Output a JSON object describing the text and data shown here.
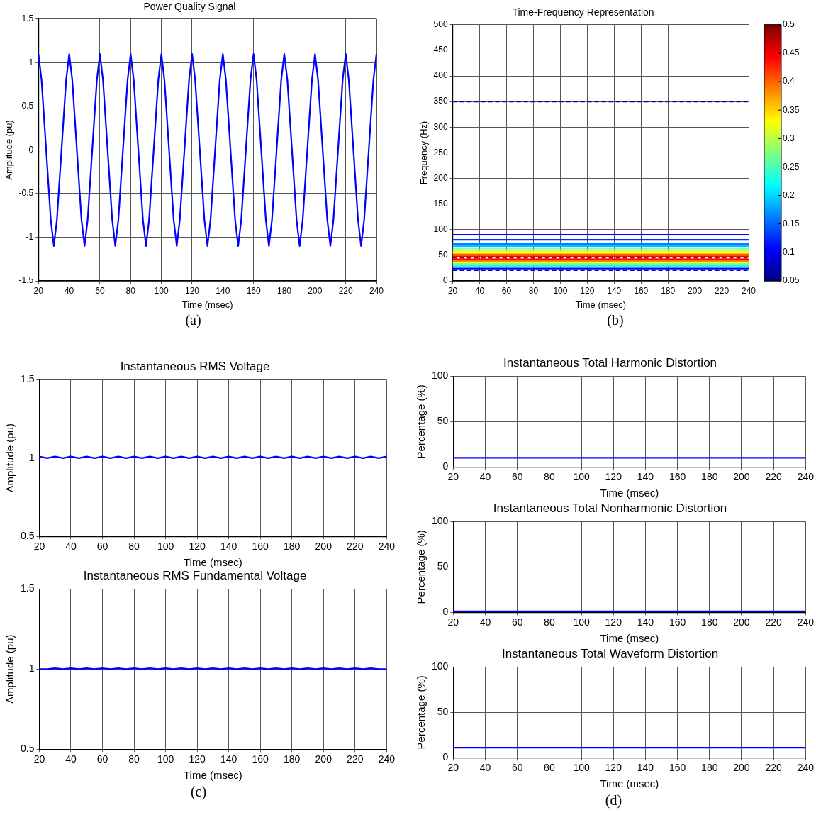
{
  "chart_data": [
    {
      "type": "line",
      "title": "Power Quality Signal",
      "xlabel": "Time (msec)",
      "ylabel": "Amplitude (pu)",
      "annotations": [
        "(a)"
      ],
      "xlim": [
        20,
        240
      ],
      "xticks": [
        20,
        40,
        60,
        80,
        100,
        120,
        140,
        160,
        180,
        200,
        220,
        240
      ],
      "ylim": [
        -1.5,
        1.5
      ],
      "yticks": [
        -1.5,
        -1,
        -0.5,
        0,
        0.5,
        1,
        1.5
      ],
      "grid": true,
      "legend": false,
      "marker": "none",
      "x": [
        20,
        22,
        25,
        28,
        30,
        32,
        35,
        38,
        40,
        42,
        45,
        48,
        50,
        52,
        55,
        58,
        60,
        62,
        65,
        68,
        70,
        72,
        75,
        78,
        80,
        82,
        85,
        88,
        90,
        92,
        95,
        98,
        100,
        102,
        105,
        108,
        110,
        112,
        115,
        118,
        120,
        122,
        125,
        128,
        130,
        132,
        135,
        138,
        140,
        142,
        145,
        148,
        150,
        152,
        155,
        158,
        160,
        162,
        165,
        168,
        170,
        172,
        175,
        178,
        180,
        182,
        185,
        188,
        190,
        192,
        195,
        198,
        200,
        202,
        205,
        208,
        210,
        212,
        215,
        218,
        220,
        222,
        225,
        228,
        230,
        232,
        235,
        238,
        240
      ],
      "series": [
        {
          "color": "#0000ff",
          "line_style": "solid",
          "values": [
            1.1,
            0.8,
            0,
            -0.8,
            -1.1,
            -0.8,
            0,
            0.8,
            1.1,
            0.8,
            0,
            -0.8,
            -1.1,
            -0.8,
            0,
            0.8,
            1.1,
            0.8,
            0,
            -0.8,
            -1.1,
            -0.8,
            0,
            0.8,
            1.1,
            0.8,
            0,
            -0.8,
            -1.1,
            -0.8,
            0,
            0.8,
            1.1,
            0.8,
            0,
            -0.8,
            -1.1,
            -0.8,
            0,
            0.8,
            1.1,
            0.8,
            0,
            -0.8,
            -1.1,
            -0.8,
            0,
            0.8,
            1.1,
            0.8,
            0,
            -0.8,
            -1.1,
            -0.8,
            0,
            0.8,
            1.1,
            0.8,
            0,
            -0.8,
            -1.1,
            -0.8,
            0,
            0.8,
            1.1,
            0.8,
            0,
            -0.8,
            -1.1,
            -0.8,
            0,
            0.8,
            1.1,
            0.8,
            0,
            -0.8,
            -1.1,
            -0.8,
            0,
            0.8,
            1.1,
            0.8,
            0,
            -0.8,
            -1.1,
            -0.8,
            0,
            0.8,
            1.1
          ]
        }
      ]
    },
    {
      "type": "line",
      "title": "Time-Frequency Representation",
      "xlabel": "Time (msec)",
      "ylabel": "Frequency (Hz)",
      "xlim": [
        20,
        240
      ],
      "xticks": [
        20,
        40,
        60,
        80,
        100,
        120,
        140,
        160,
        180,
        200,
        220,
        240
      ],
      "ylim": [
        0,
        500
      ],
      "yticks": [
        0,
        50,
        100,
        150,
        200,
        250,
        300,
        350,
        400,
        450,
        500
      ],
      "clim": [
        0.05,
        0.5
      ],
      "cticks": [
        0.05,
        0.1,
        0.15,
        0.2,
        0.25,
        0.3,
        0.35,
        0.4,
        0.45,
        0.5
      ],
      "grid": true,
      "legend": false,
      "marker": "none",
      "annotations": [
        "(b)"
      ],
      "x": [
        20,
        240
      ],
      "series": [
        {
          "color": "#00008f",
          "line_style": "dashed",
          "values": [
            350,
            350
          ]
        },
        {
          "color": "#0000ff",
          "line_style": "solid",
          "values": [
            90,
            90
          ]
        },
        {
          "color": "#0030ff",
          "line_style": "solid",
          "values": [
            80,
            80
          ]
        },
        {
          "color": "#0080ff",
          "line_style": "solid",
          "values": [
            72,
            72
          ]
        },
        {
          "color": "#00c0ff",
          "line_style": "solid",
          "values": [
            68,
            68
          ]
        },
        {
          "color": "#40ffbf",
          "line_style": "solid",
          "values": [
            64,
            64
          ]
        },
        {
          "color": "#80ff80",
          "line_style": "solid",
          "values": [
            60,
            60
          ]
        },
        {
          "color": "#ffff00",
          "line_style": "solid",
          "values": [
            57,
            57
          ]
        },
        {
          "color": "#ffbf00",
          "line_style": "solid",
          "values": [
            54,
            54
          ]
        },
        {
          "color": "#ff6000",
          "line_style": "solid",
          "values": [
            51,
            51
          ]
        },
        {
          "color": "#ff0000",
          "line_style": "solid",
          "values": [
            48,
            48
          ]
        },
        {
          "color": "#a00000",
          "line_style": "dashed",
          "values": [
            45,
            45
          ]
        },
        {
          "color": "#ff0000",
          "line_style": "solid",
          "values": [
            42,
            42
          ]
        },
        {
          "color": "#ff8000",
          "line_style": "solid",
          "values": [
            39,
            39
          ]
        },
        {
          "color": "#ffff00",
          "line_style": "solid",
          "values": [
            36,
            36
          ]
        },
        {
          "color": "#80ff80",
          "line_style": "solid",
          "values": [
            33,
            33
          ]
        },
        {
          "color": "#00ffff",
          "line_style": "solid",
          "values": [
            30,
            30
          ]
        },
        {
          "color": "#00a0ff",
          "line_style": "solid",
          "values": [
            27,
            27
          ]
        },
        {
          "color": "#0000ff",
          "line_style": "solid",
          "values": [
            24,
            24
          ]
        },
        {
          "color": "#00008f",
          "line_style": "dashed",
          "values": [
            21,
            21
          ]
        }
      ]
    },
    {
      "type": "line",
      "title": "Instantaneous RMS Voltage",
      "xlabel": "Time (msec)",
      "ylabel": "Amplitude (pu)",
      "xlim": [
        20,
        240
      ],
      "xticks": [
        20,
        40,
        60,
        80,
        100,
        120,
        140,
        160,
        180,
        200,
        220,
        240
      ],
      "ylim": [
        0.5,
        1.5
      ],
      "yticks": [
        0.5,
        1,
        1.5
      ],
      "grid": true,
      "legend": false,
      "marker": "none",
      "x": [
        20,
        25,
        30,
        35,
        40,
        45,
        50,
        55,
        60,
        65,
        70,
        75,
        80,
        85,
        90,
        95,
        100,
        105,
        110,
        115,
        120,
        125,
        130,
        135,
        140,
        145,
        150,
        155,
        160,
        165,
        170,
        175,
        180,
        185,
        190,
        195,
        200,
        205,
        210,
        215,
        220,
        225,
        230,
        235,
        240
      ],
      "series": [
        {
          "color": "#0000ff",
          "line_style": "solid",
          "values": [
            1.01,
            1,
            1.01,
            1,
            1.01,
            1,
            1.01,
            1,
            1.01,
            1,
            1.01,
            1,
            1.01,
            1,
            1.01,
            1,
            1.01,
            1,
            1.01,
            1,
            1.01,
            1,
            1.01,
            1,
            1.01,
            1,
            1.01,
            1,
            1.01,
            1,
            1.01,
            1,
            1.01,
            1,
            1.01,
            1,
            1.01,
            1,
            1.01,
            1,
            1.01,
            1,
            1.01,
            1,
            1.01
          ]
        }
      ]
    },
    {
      "type": "line",
      "title": "Instantaneous RMS Fundamental Voltage",
      "xlabel": "Time (msec)",
      "ylabel": "Amplitude (pu)",
      "xlim": [
        20,
        240
      ],
      "xticks": [
        20,
        40,
        60,
        80,
        100,
        120,
        140,
        160,
        180,
        200,
        220,
        240
      ],
      "ylim": [
        0.5,
        1.5
      ],
      "yticks": [
        0.5,
        1,
        1.5
      ],
      "grid": true,
      "legend": false,
      "marker": "none",
      "annotations": [
        "(c)"
      ],
      "x": [
        20,
        25,
        30,
        35,
        40,
        45,
        50,
        55,
        60,
        65,
        70,
        75,
        80,
        85,
        90,
        95,
        100,
        105,
        110,
        115,
        120,
        125,
        130,
        135,
        140,
        145,
        150,
        155,
        160,
        165,
        170,
        175,
        180,
        185,
        190,
        195,
        200,
        205,
        210,
        215,
        220,
        225,
        230,
        235,
        240
      ],
      "series": [
        {
          "color": "#0000ff",
          "line_style": "solid",
          "values": [
            1,
            1,
            1.005,
            1,
            1.005,
            1,
            1.005,
            1,
            1.005,
            1,
            1.005,
            1,
            1.005,
            1,
            1.005,
            1,
            1.005,
            1,
            1.005,
            1,
            1.005,
            1,
            1.005,
            1,
            1.005,
            1,
            1.005,
            1,
            1.005,
            1,
            1.005,
            1,
            1.005,
            1,
            1.005,
            1,
            1.005,
            1,
            1.005,
            1,
            1.005,
            1,
            1.005,
            1,
            1
          ]
        }
      ]
    },
    {
      "type": "line",
      "title": "Instantaneous Total Harmonic Distortion",
      "xlabel": "Time (msec)",
      "ylabel": "Percentage (%)",
      "xlim": [
        20,
        240
      ],
      "xticks": [
        20,
        40,
        60,
        80,
        100,
        120,
        140,
        160,
        180,
        200,
        220,
        240
      ],
      "ylim": [
        0,
        100
      ],
      "yticks": [
        0,
        50,
        100
      ],
      "grid": true,
      "legend": false,
      "marker": "none",
      "x": [
        20,
        240
      ],
      "series": [
        {
          "color": "#0000ff",
          "line_style": "solid",
          "values": [
            10,
            10
          ]
        }
      ]
    },
    {
      "type": "line",
      "title": "Instantaneous Total Nonharmonic Distortion",
      "xlabel": "Time (msec)",
      "ylabel": "Percentage (%)",
      "xlim": [
        20,
        240
      ],
      "xticks": [
        20,
        40,
        60,
        80,
        100,
        120,
        140,
        160,
        180,
        200,
        220,
        240
      ],
      "ylim": [
        0,
        100
      ],
      "yticks": [
        0,
        50,
        100
      ],
      "grid": true,
      "legend": false,
      "marker": "none",
      "x": [
        20,
        240
      ],
      "series": [
        {
          "color": "#0000ff",
          "line_style": "solid",
          "values": [
            1,
            1
          ]
        }
      ]
    },
    {
      "type": "line",
      "title": "Instantaneous Total Waveform Distortion",
      "xlabel": "Time (msec)",
      "ylabel": "Percentage (%)",
      "xlim": [
        20,
        240
      ],
      "xticks": [
        20,
        40,
        60,
        80,
        100,
        120,
        140,
        160,
        180,
        200,
        220,
        240
      ],
      "ylim": [
        0,
        100
      ],
      "yticks": [
        0,
        50,
        100
      ],
      "grid": true,
      "legend": false,
      "marker": "none",
      "annotations": [
        "(d)"
      ],
      "x": [
        20,
        240
      ],
      "series": [
        {
          "color": "#0000ff",
          "line_style": "solid",
          "values": [
            11,
            11
          ]
        }
      ]
    }
  ]
}
